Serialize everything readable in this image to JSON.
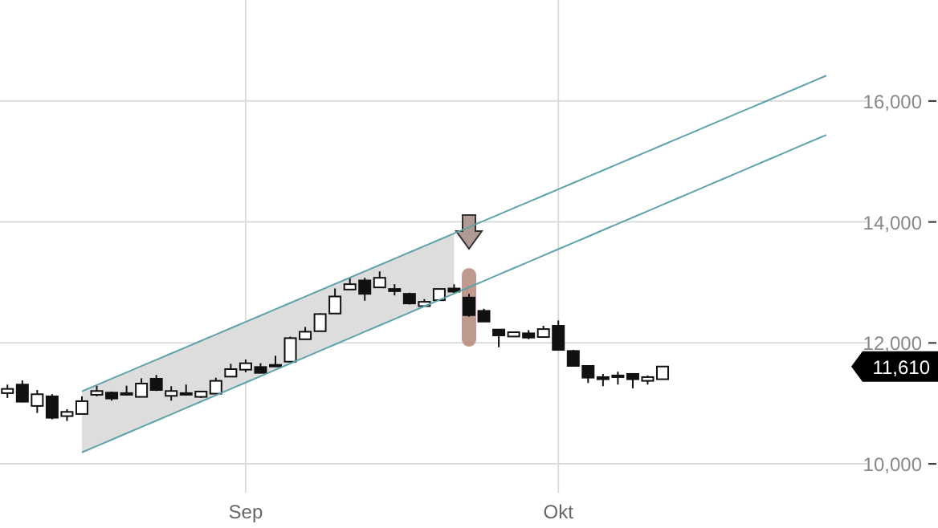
{
  "chart_data": {
    "type": "candlestick",
    "categories": [
      null,
      null,
      null,
      null,
      null,
      null,
      null,
      null,
      null,
      null,
      null,
      null,
      null,
      null,
      null,
      null,
      "Sep",
      null,
      null,
      null,
      null,
      null,
      null,
      null,
      null,
      null,
      null,
      null,
      null,
      null,
      null,
      null,
      null,
      null,
      null,
      null,
      null,
      "Okt",
      null,
      null,
      null,
      null,
      null,
      null,
      null,
      null,
      null,
      null,
      null,
      null,
      null,
      null,
      null,
      null,
      null,
      null,
      null,
      null,
      null,
      null,
      null,
      null,
      null
    ],
    "ohlc": [
      [
        11170,
        11311,
        11090,
        11240
      ],
      [
        11311,
        11381,
        11020,
        11028
      ],
      [
        10958,
        11222,
        10843,
        11152
      ],
      [
        11117,
        11152,
        10737,
        10763
      ],
      [
        10790,
        10905,
        10710,
        10860
      ],
      [
        10825,
        11117,
        10825,
        11037
      ],
      [
        11143,
        11293,
        11117,
        11205
      ],
      [
        11178,
        11196,
        11046,
        11081
      ],
      [
        11143,
        11293,
        11134,
        11170
      ],
      [
        11108,
        11417,
        11108,
        11328
      ],
      [
        11408,
        11470,
        11205,
        11222
      ],
      [
        11125,
        11285,
        11046,
        11205
      ],
      [
        11170,
        11311,
        11134,
        11150
      ],
      [
        11108,
        11196,
        11090,
        11196
      ],
      [
        11161,
        11425,
        11161,
        11373
      ],
      [
        11443,
        11655,
        11443,
        11567
      ],
      [
        11558,
        11726,
        11514,
        11664
      ],
      [
        11602,
        11664,
        11505,
        11505
      ],
      [
        11637,
        11788,
        11611,
        11611
      ],
      [
        11690,
        12105,
        11690,
        12079
      ],
      [
        12061,
        12264,
        12061,
        12185
      ],
      [
        12194,
        12490,
        12194,
        12477
      ],
      [
        12486,
        12900,
        12486,
        12768
      ],
      [
        12883,
        13077,
        12883,
        12971
      ],
      [
        13033,
        13077,
        12698,
        12812
      ],
      [
        12918,
        13183,
        12918,
        13077
      ],
      [
        12892,
        12971,
        12786,
        12856
      ],
      [
        12812,
        12830,
        12636,
        12653
      ],
      [
        12609,
        12724,
        12609,
        12680
      ],
      [
        12706,
        12900,
        12706,
        12892
      ],
      [
        12900,
        12971,
        12812,
        12848
      ],
      [
        12750,
        12812,
        12433,
        12459
      ],
      [
        12530,
        12565,
        12353,
        12353
      ],
      [
        12221,
        12221,
        11929,
        12124
      ],
      [
        12106,
        12177,
        12106,
        12177
      ],
      [
        12159,
        12212,
        12062,
        12088
      ],
      [
        12097,
        12283,
        12097,
        12229
      ],
      [
        12283,
        12371,
        11885,
        11885
      ],
      [
        11867,
        11885,
        11620,
        11620
      ],
      [
        11620,
        11620,
        11338,
        11426
      ],
      [
        11435,
        11488,
        11285,
        11400
      ],
      [
        11462,
        11524,
        11312,
        11435
      ],
      [
        11488,
        11488,
        11250,
        11400
      ],
      [
        11373,
        11462,
        11312,
        11435
      ],
      [
        11400,
        11610,
        11400,
        11610
      ],
      null,
      null,
      null,
      null,
      null,
      null,
      null,
      null,
      null,
      null,
      null,
      null,
      null,
      null,
      null,
      null,
      null,
      null
    ],
    "series": [
      {
        "type": "line",
        "color": "#5fa3a8",
        "values": [
          null,
          null,
          null,
          null,
          null,
          11200,
          11304,
          11409,
          11513,
          11618,
          11722,
          11826,
          11931,
          12035,
          12140,
          12244,
          12348,
          12453,
          12557,
          12662,
          12766,
          12870,
          12975,
          13079,
          13184,
          13288,
          13392,
          13497,
          13601,
          13706,
          13810,
          13914,
          14019,
          14123,
          14228,
          14332,
          14436,
          14541,
          14645,
          14750,
          14854,
          14958,
          15063,
          15167,
          15272,
          15376,
          15480,
          15585,
          15689,
          15794,
          15898,
          16002,
          16107,
          16211,
          16316,
          16420,
          null,
          null,
          null,
          null,
          null,
          null,
          null
        ],
        "upper": [
          null,
          null,
          null,
          null,
          null,
          11200,
          11304,
          11409,
          11513,
          11618,
          11722,
          11826,
          11931,
          12035,
          12140,
          12244,
          12348,
          12453,
          12557,
          12662,
          12766,
          12870,
          12975,
          13079,
          13184,
          13288,
          13392,
          13497,
          13601,
          13706,
          13810,
          null,
          null,
          null,
          null,
          null,
          null,
          null,
          null,
          null,
          null,
          null,
          null,
          null,
          null,
          null,
          null,
          null,
          null,
          null,
          null,
          null,
          null,
          null,
          null,
          null,
          null,
          null,
          null,
          null,
          null,
          null,
          null
        ],
        "lower": [
          null,
          null,
          null,
          null,
          null,
          10190,
          10295,
          10400,
          10505,
          10610,
          10715,
          10820,
          10925,
          11030,
          11135,
          11240,
          11345,
          11450,
          11555,
          11660,
          11765,
          11870,
          11975,
          12080,
          12185,
          12290,
          12395,
          12500,
          12605,
          12710,
          12815,
          null,
          null,
          null,
          null,
          null,
          null,
          null,
          null,
          null,
          null,
          null,
          null,
          null,
          null,
          null,
          null,
          null,
          null,
          null,
          null,
          null,
          null,
          null,
          null,
          null,
          null,
          null,
          null,
          null,
          null,
          null,
          null
        ]
      },
      {
        "type": "line",
        "color": "#5fa3a8",
        "values": [
          null,
          null,
          null,
          null,
          null,
          10190,
          10295,
          10400,
          10505,
          10610,
          10715,
          10820,
          10925,
          11030,
          11135,
          11240,
          11345,
          11450,
          11555,
          11660,
          11765,
          11870,
          11975,
          12080,
          12185,
          12290,
          12395,
          12500,
          12605,
          12710,
          12815,
          12920,
          13025,
          13130,
          13235,
          13340,
          13445,
          13550,
          13655,
          13760,
          13865,
          13970,
          14075,
          14180,
          14285,
          14390,
          14495,
          14600,
          14705,
          14810,
          14915,
          15020,
          15125,
          15230,
          15335,
          15440,
          null,
          null,
          null,
          null,
          null,
          null,
          null
        ]
      }
    ],
    "ylim": [
      8940,
      17670
    ],
    "yticks": [
      {
        "value": 10000,
        "label": "10,000"
      },
      {
        "value": 12000,
        "label": "12,000"
      },
      {
        "value": 14000,
        "label": "14,000"
      },
      {
        "value": 16000,
        "label": "16,000"
      }
    ],
    "annotations": [
      "11,610"
    ],
    "grid": true
  }
}
